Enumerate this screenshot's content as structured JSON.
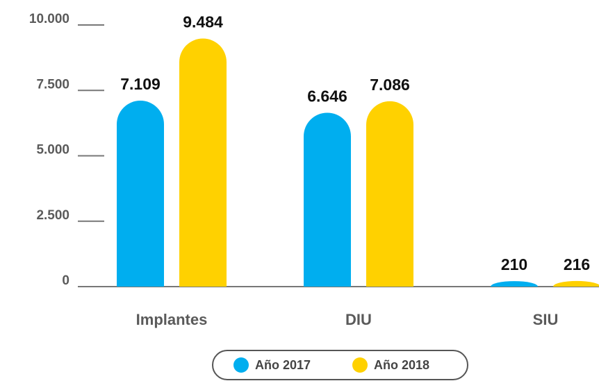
{
  "chart_data": {
    "type": "bar",
    "categories": [
      "Implantes",
      "DIU",
      "SIU"
    ],
    "series": [
      {
        "name": "Año 2017",
        "color": "#00aeef",
        "values": [
          7109,
          6646,
          210
        ],
        "value_labels": [
          "7.109",
          "6.646",
          "210"
        ]
      },
      {
        "name": "Año 2018",
        "color": "#ffd100",
        "values": [
          9484,
          7086,
          216
        ],
        "value_labels": [
          "9.484",
          "7.086",
          "216"
        ]
      }
    ],
    "ylim": [
      0,
      10000
    ],
    "yticks": [
      0,
      {
        "value": 2500,
        "label": "2.500"
      },
      {
        "value": 5000,
        "label": "5.000"
      },
      {
        "value": 7500,
        "label": "7.500"
      },
      {
        "value": 10000,
        "label": "10.000"
      }
    ],
    "legend": "bottom"
  }
}
